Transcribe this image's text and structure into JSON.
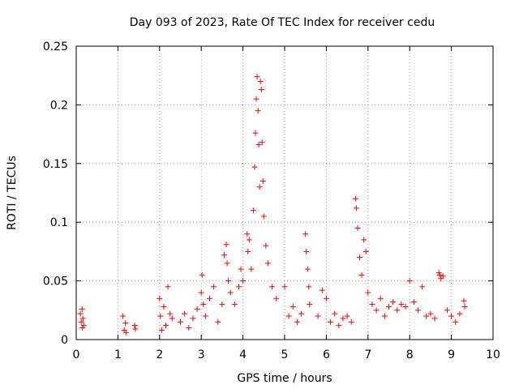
{
  "chart_data": {
    "type": "scatter",
    "title": "Day 093 of 2023, Rate Of TEC Index for receiver cedu",
    "xlabel": "GPS time / hours",
    "ylabel": "ROTI / TECUs",
    "xlim": [
      0,
      10
    ],
    "ylim": [
      0,
      0.25
    ],
    "x_ticks": [
      0,
      1,
      2,
      3,
      4,
      5,
      6,
      7,
      8,
      9,
      10
    ],
    "y_ticks": [
      0,
      0.05,
      0.1,
      0.15,
      0.2,
      0.25
    ],
    "x_tick_labels": [
      "0",
      "1",
      "2",
      "3",
      "4",
      "5",
      "6",
      "7",
      "8",
      "9",
      "10"
    ],
    "y_tick_labels": [
      "0",
      "0.05",
      "0.1",
      "0.15",
      "0.2",
      "0.25"
    ],
    "grid": true,
    "marker": "+",
    "series": [
      {
        "name": "ROTI",
        "color": "#ff0000",
        "points": [
          [
            0.1,
            0.022
          ],
          [
            0.12,
            0.015
          ],
          [
            0.14,
            0.026
          ],
          [
            0.15,
            0.01
          ],
          [
            0.16,
            0.018
          ],
          [
            0.18,
            0.012
          ],
          [
            1.12,
            0.02
          ],
          [
            1.15,
            0.008
          ],
          [
            1.18,
            0.014
          ],
          [
            1.2,
            0.006
          ],
          [
            1.4,
            0.012
          ],
          [
            1.42,
            0.009
          ],
          [
            2.0,
            0.035
          ],
          [
            2.02,
            0.02
          ],
          [
            2.05,
            0.008
          ],
          [
            2.1,
            0.028
          ],
          [
            2.15,
            0.012
          ],
          [
            2.2,
            0.045
          ],
          [
            2.25,
            0.022
          ],
          [
            2.3,
            0.018
          ],
          [
            2.5,
            0.015
          ],
          [
            2.6,
            0.022
          ],
          [
            2.7,
            0.01
          ],
          [
            2.8,
            0.018
          ],
          [
            2.9,
            0.026
          ],
          [
            3.0,
            0.04
          ],
          [
            3.02,
            0.055
          ],
          [
            3.05,
            0.03
          ],
          [
            3.1,
            0.02
          ],
          [
            3.2,
            0.035
          ],
          [
            3.3,
            0.045
          ],
          [
            3.4,
            0.015
          ],
          [
            3.5,
            0.03
          ],
          [
            3.55,
            0.072
          ],
          [
            3.6,
            0.081
          ],
          [
            3.62,
            0.065
          ],
          [
            3.65,
            0.05
          ],
          [
            3.7,
            0.04
          ],
          [
            3.8,
            0.03
          ],
          [
            3.9,
            0.045
          ],
          [
            3.95,
            0.06
          ],
          [
            4.0,
            0.05
          ],
          [
            4.1,
            0.09
          ],
          [
            4.12,
            0.075
          ],
          [
            4.15,
            0.085
          ],
          [
            4.2,
            0.06
          ],
          [
            4.25,
            0.11
          ],
          [
            4.28,
            0.147
          ],
          [
            4.3,
            0.176
          ],
          [
            4.32,
            0.205
          ],
          [
            4.34,
            0.224
          ],
          [
            4.36,
            0.195
          ],
          [
            4.38,
            0.166
          ],
          [
            4.4,
            0.13
          ],
          [
            4.42,
            0.22
          ],
          [
            4.44,
            0.213
          ],
          [
            4.46,
            0.168
          ],
          [
            4.48,
            0.135
          ],
          [
            4.5,
            0.105
          ],
          [
            4.55,
            0.08
          ],
          [
            4.6,
            0.065
          ],
          [
            4.7,
            0.045
          ],
          [
            4.8,
            0.035
          ],
          [
            5.0,
            0.045
          ],
          [
            5.1,
            0.02
          ],
          [
            5.2,
            0.028
          ],
          [
            5.3,
            0.015
          ],
          [
            5.4,
            0.022
          ],
          [
            5.5,
            0.09
          ],
          [
            5.52,
            0.075
          ],
          [
            5.55,
            0.06
          ],
          [
            5.58,
            0.045
          ],
          [
            5.6,
            0.03
          ],
          [
            5.8,
            0.02
          ],
          [
            5.9,
            0.042
          ],
          [
            6.0,
            0.035
          ],
          [
            6.1,
            0.015
          ],
          [
            6.2,
            0.022
          ],
          [
            6.3,
            0.012
          ],
          [
            6.4,
            0.018
          ],
          [
            6.5,
            0.02
          ],
          [
            6.6,
            0.015
          ],
          [
            6.7,
            0.12
          ],
          [
            6.72,
            0.112
          ],
          [
            6.75,
            0.095
          ],
          [
            6.8,
            0.07
          ],
          [
            6.85,
            0.055
          ],
          [
            6.9,
            0.085
          ],
          [
            6.95,
            0.075
          ],
          [
            7.0,
            0.04
          ],
          [
            7.1,
            0.03
          ],
          [
            7.2,
            0.025
          ],
          [
            7.3,
            0.035
          ],
          [
            7.4,
            0.02
          ],
          [
            7.5,
            0.028
          ],
          [
            7.6,
            0.032
          ],
          [
            7.7,
            0.025
          ],
          [
            7.8,
            0.03
          ],
          [
            7.9,
            0.028
          ],
          [
            8.0,
            0.05
          ],
          [
            8.1,
            0.032
          ],
          [
            8.2,
            0.025
          ],
          [
            8.3,
            0.045
          ],
          [
            8.4,
            0.02
          ],
          [
            8.5,
            0.022
          ],
          [
            8.6,
            0.018
          ],
          [
            8.7,
            0.057
          ],
          [
            8.72,
            0.055
          ],
          [
            8.75,
            0.052
          ],
          [
            8.8,
            0.054
          ],
          [
            8.9,
            0.025
          ],
          [
            9.0,
            0.02
          ],
          [
            9.1,
            0.015
          ],
          [
            9.2,
            0.022
          ],
          [
            9.3,
            0.033
          ],
          [
            9.32,
            0.028
          ]
        ]
      }
    ]
  }
}
